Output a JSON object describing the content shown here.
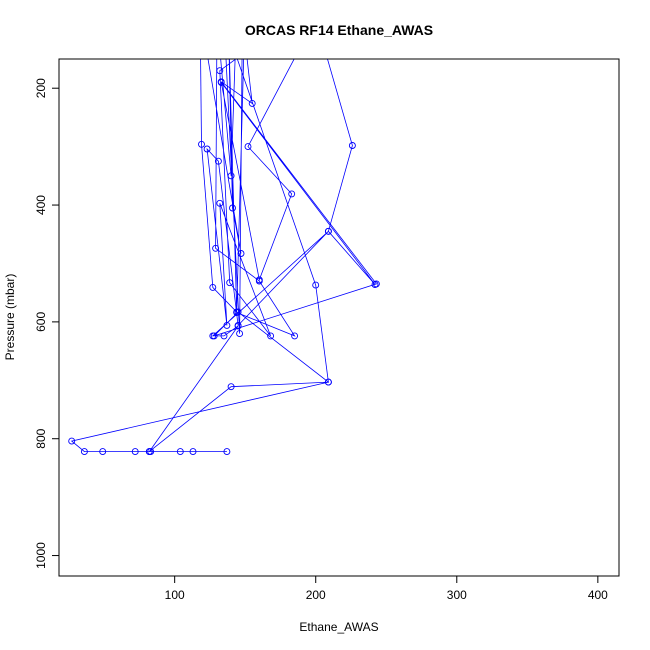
{
  "chart_data": {
    "type": "line",
    "title": "ORCAS RF14 Ethane_AWAS",
    "xlabel": "Ethane_AWAS",
    "ylabel": "Pressure (mbar)",
    "xlim": [
      18,
      415
    ],
    "ylim": [
      1035,
      150
    ],
    "y_reversed": true,
    "x_ticks": [
      100,
      200,
      300,
      400
    ],
    "y_ticks": [
      200,
      400,
      600,
      800,
      1000
    ],
    "grid": false,
    "colors": {
      "series": "#0000ff",
      "axis": "#000000"
    },
    "series": [
      {
        "points": [
          [
            137,
            822
          ],
          [
            113,
            822
          ],
          [
            104,
            822
          ],
          [
            83,
            822
          ],
          [
            82,
            822
          ],
          [
            72,
            822
          ],
          [
            49,
            822
          ],
          [
            36,
            822
          ],
          [
            27,
            804
          ],
          [
            209,
            703
          ],
          [
            140,
            711
          ],
          [
            82,
            822
          ],
          [
            145,
            607
          ],
          [
            135,
            624
          ],
          [
            127,
            624
          ],
          [
            209,
            445
          ],
          [
            242,
            536
          ],
          [
            133,
            190
          ],
          [
            160,
            528
          ],
          [
            183,
            381
          ],
          [
            152,
            300
          ],
          [
            200,
            80
          ],
          [
            226,
            298
          ],
          [
            209,
            445
          ],
          [
            145,
            606
          ],
          [
            131,
            325
          ],
          [
            123,
            304
          ],
          [
            137,
            606
          ],
          [
            132,
            397
          ],
          [
            168,
            624
          ],
          [
            139,
            533
          ],
          [
            132,
            170
          ],
          [
            149,
            140
          ],
          [
            144,
            583
          ],
          [
            127,
            541
          ],
          [
            119,
            296
          ],
          [
            118,
            70
          ],
          [
            147,
            483
          ],
          [
            141,
            405
          ],
          [
            138,
            80
          ],
          [
            144,
            584
          ],
          [
            185,
            624
          ],
          [
            160,
            530
          ],
          [
            129,
            474
          ],
          [
            130,
            80
          ],
          [
            140,
            350
          ],
          [
            143,
            140
          ],
          [
            200,
            537
          ],
          [
            209,
            703
          ],
          [
            145,
            583
          ],
          [
            128,
            624
          ],
          [
            243,
            535
          ],
          [
            133,
            189
          ],
          [
            155,
            226
          ],
          [
            148,
            80
          ],
          [
            146,
            620
          ],
          [
            135,
            80
          ]
        ]
      }
    ]
  }
}
